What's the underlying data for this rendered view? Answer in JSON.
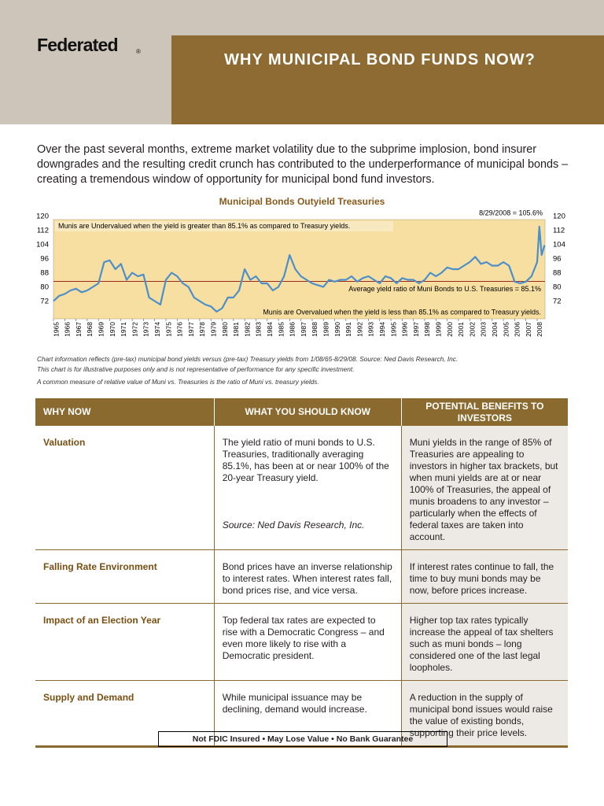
{
  "header": {
    "logo": "Federated",
    "logo_mark": "®",
    "title": "WHY MUNICIPAL BOND FUNDS NOW?"
  },
  "intro": "Over the past several months, extreme market volatility due to the subprime implosion, bond insurer downgrades and the resulting credit crunch has contributed to the underperformance of municipal bonds – creating a tremendous window of opportunity for municipal bond fund investors.",
  "chart_data": {
    "type": "line",
    "title": "Municipal Bonds Outyield Treasuries",
    "annotations": {
      "latest": "8/29/2008 = 105.6%",
      "undervalued": "Munis are Undervalued when the yield is greater than 85.1% as compared to Treasury yields.",
      "average": "Average yield ratio of Muni Bonds to U.S. Treasuries = 85.1%",
      "overvalued": "Munis are Overvalued when the yield is less than 85.1% as compared to Treasury yields."
    },
    "average": 85.1,
    "average_color": "#9b2a1c",
    "color": "#4a8fcb",
    "background": "#f7dfa1",
    "x": [
      1965,
      1965.5,
      1966,
      1966.5,
      1967,
      1967.5,
      1968,
      1968.5,
      1969,
      1969.5,
      1970,
      1970.5,
      1971,
      1971.5,
      1972,
      1972.5,
      1973,
      1973.5,
      1974,
      1974.5,
      1975,
      1975.5,
      1976,
      1976.5,
      1977,
      1977.5,
      1978,
      1978.5,
      1979,
      1979.5,
      1980,
      1980.5,
      1981,
      1981.5,
      1982,
      1982.5,
      1983,
      1983.5,
      1984,
      1984.5,
      1985,
      1985.5,
      1986,
      1986.5,
      1987,
      1987.5,
      1988,
      1988.5,
      1989,
      1989.5,
      1990,
      1990.5,
      1991,
      1991.5,
      1992,
      1992.5,
      1993,
      1993.5,
      1994,
      1994.5,
      1995,
      1995.5,
      1996,
      1996.5,
      1997,
      1997.5,
      1998,
      1998.5,
      1999,
      1999.5,
      2000,
      2000.5,
      2001,
      2001.5,
      2002,
      2002.5,
      2003,
      2003.5,
      2004,
      2004.5,
      2005,
      2005.5,
      2006,
      2006.5,
      2007,
      2007.5,
      2008,
      2008.2,
      2008.4,
      2008.66
    ],
    "values": [
      74,
      77,
      78,
      80,
      81,
      79,
      80,
      82,
      84,
      96,
      97,
      92,
      95,
      86,
      90,
      88,
      89,
      76,
      74,
      72,
      86,
      90,
      88,
      84,
      82,
      76,
      74,
      72,
      71,
      68,
      70,
      76,
      76,
      80,
      92,
      86,
      88,
      84,
      84,
      80,
      82,
      88,
      100,
      92,
      88,
      86,
      84,
      83,
      82,
      86,
      85,
      86,
      86,
      88,
      85,
      87,
      88,
      86,
      84,
      88,
      87,
      84,
      87,
      86,
      86,
      84,
      86,
      90,
      88,
      90,
      93,
      92,
      92,
      94,
      96,
      99,
      95,
      96,
      94,
      94,
      96,
      94,
      85,
      84,
      85,
      88,
      96,
      116,
      100,
      105.6
    ],
    "xlim": [
      1965,
      2008.7
    ],
    "xticks": [
      1965,
      1966,
      1967,
      1968,
      1969,
      1970,
      1971,
      1972,
      1973,
      1974,
      1975,
      1976,
      1977,
      1978,
      1979,
      1980,
      1981,
      1982,
      1983,
      1984,
      1985,
      1986,
      1987,
      1988,
      1989,
      1990,
      1991,
      1992,
      1993,
      1994,
      1995,
      1996,
      1997,
      1998,
      1999,
      2000,
      2001,
      2002,
      2003,
      2004,
      2005,
      2006,
      2007,
      2008
    ],
    "ylim": [
      64,
      120
    ],
    "yticks": [
      72,
      80,
      88,
      96,
      104,
      112,
      120
    ],
    "grid": false
  },
  "notes": [
    "Chart information reflects (pre-tax) municipal bond yields versus (pre-tax) Treasury yields from 1/08/65-8/29/08. Source: Ned Davis Research, Inc.",
    "This chart is for illustrative purposes only and is not representative of performance for any specific investment.",
    "A common measure of relative value of Muni vs. Treasuries is the ratio of Muni vs. treasury yields."
  ],
  "table": {
    "headers": [
      "WHY NOW",
      "WHAT YOU SHOULD KNOW",
      "POTENTIAL BENEFITS TO INVESTORS"
    ],
    "rows": [
      [
        "Valuation",
        "The yield ratio of muni bonds to U.S. Treasuries, traditionally averaging 85.1%, has been at or near 100% of the 20-year Treasury yield.",
        "Muni yields in the range of 85% of Treasuries are appealing to investors in higher tax brackets, but when muni yields are at or near 100% of Treasuries, the appeal of munis broadens to any investor – particularly when the effects of federal taxes are taken into account."
      ],
      [
        "Falling Rate Environment",
        "Bond prices have an inverse relationship to interest rates. When interest rates fall, bond prices rise, and vice versa.",
        "If interest rates continue to fall, the time to buy muni bonds may be now, before prices increase."
      ],
      [
        "Impact of an Election Year",
        "Top federal tax rates are expected to rise with a Democratic Congress – and even more likely to rise with a Democratic president.",
        "Higher top tax rates typically increase the appeal of tax shelters such as muni bonds – long considered one of the last legal loopholes."
      ],
      [
        "Supply and Demand",
        "While municipal issuance may be declining, demand would increase.",
        "A reduction in the supply of municipal bond issues would raise the value of existing bonds, supporting their price levels."
      ]
    ],
    "source": "Source: Ned Davis Research, Inc."
  },
  "footer": "Not FDIC Insured • May Lose Value • No Bank Guarantee"
}
